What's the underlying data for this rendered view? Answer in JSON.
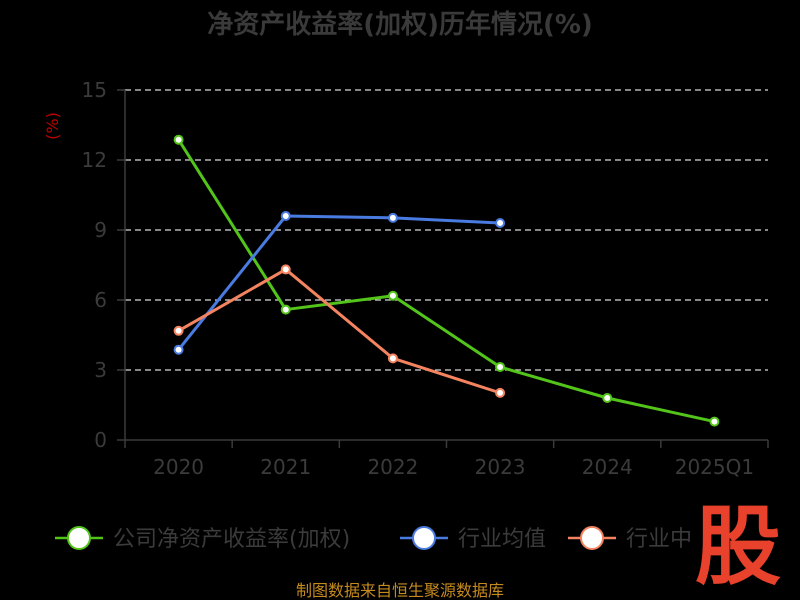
{
  "chart_data": {
    "type": "line",
    "title": "净资产收益率(加权)历年情况(%)",
    "ylabel": "(%)",
    "categories": [
      "2020",
      "2021",
      "2022",
      "2023",
      "2024",
      "2025Q1"
    ],
    "ylim": [
      0,
      15
    ],
    "yticks": [
      0,
      3,
      6,
      9,
      12,
      15
    ],
    "grid": true,
    "legend_position": "bottom",
    "series": [
      {
        "name": "公司净资产收益率(加权)",
        "color": "#52c41a",
        "values": [
          12.87,
          5.59,
          6.18,
          3.13,
          1.8,
          0.79
        ]
      },
      {
        "name": "行业均值",
        "color": "#4a7be0",
        "values": [
          3.87,
          9.6,
          9.52,
          9.3,
          null,
          null
        ]
      },
      {
        "name": "行业中位数",
        "color": "#f4845f",
        "values": [
          4.68,
          7.31,
          3.5,
          2.02,
          null,
          null
        ]
      }
    ]
  },
  "legend_labels": [
    "公司净资产收益率(加权)",
    "行业均值",
    "行业中"
  ],
  "source_text": "制图数据来自恒生聚源数据库",
  "logo_text": "股"
}
